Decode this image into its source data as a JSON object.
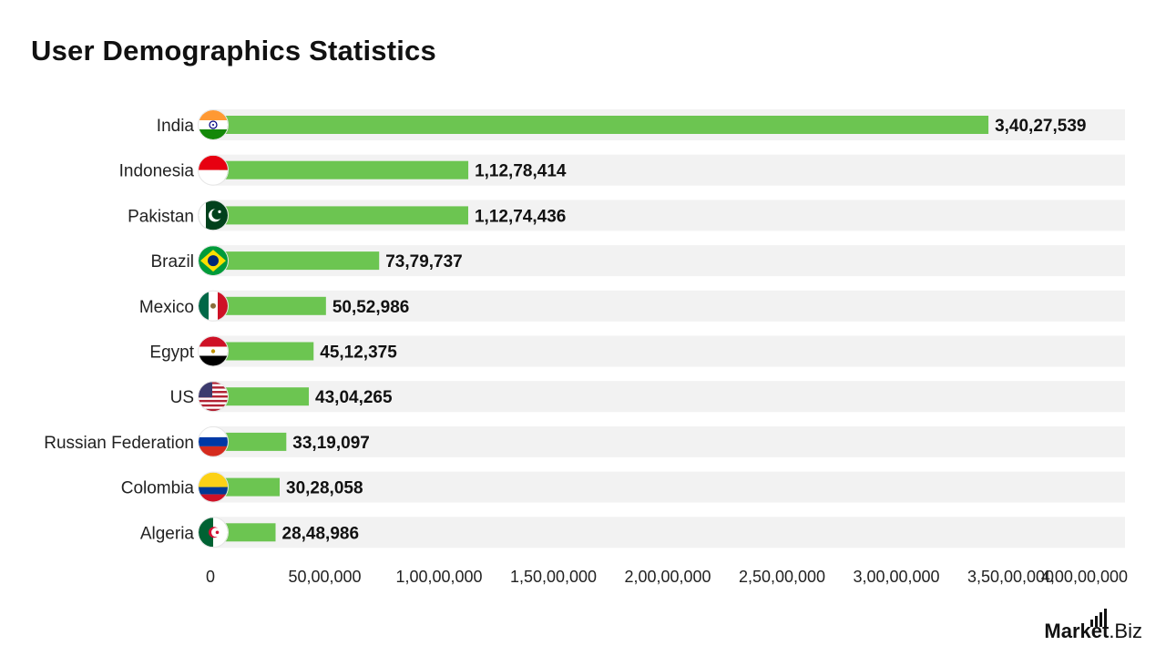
{
  "chart_data": {
    "type": "bar",
    "orientation": "horizontal",
    "title": "User Demographics Statistics",
    "categories": [
      "India",
      "Indonesia",
      "Pakistan",
      "Brazil",
      "Mexico",
      "Egypt",
      "US",
      "Russian Federation",
      "Colombia",
      "Algeria"
    ],
    "values": [
      34027539,
      11278414,
      11274436,
      7379737,
      5052986,
      4512375,
      4304265,
      3319097,
      3028058,
      2848986
    ],
    "value_labels": [
      "3,40,27,539",
      "1,12,78,414",
      "1,12,74,436",
      "73,79,737",
      "50,52,986",
      "45,12,375",
      "43,04,265",
      "33,19,097",
      "30,28,058",
      "28,48,986"
    ],
    "flags": [
      "india-flag-icon",
      "indonesia-flag-icon",
      "pakistan-flag-icon",
      "brazil-flag-icon",
      "mexico-flag-icon",
      "egypt-flag-icon",
      "us-flag-icon",
      "russia-flag-icon",
      "colombia-flag-icon",
      "algeria-flag-icon"
    ],
    "xlim": [
      0,
      40000000
    ],
    "x_ticks": [
      0,
      5000000,
      10000000,
      15000000,
      20000000,
      25000000,
      30000000,
      35000000,
      40000000
    ],
    "x_tick_labels": [
      "0",
      "50,00,000",
      "1,00,00,000",
      "1,50,00,000",
      "2,00,00,000",
      "2,50,00,000",
      "3,00,00,000",
      "3,50,00,000",
      "4,00,00,000"
    ],
    "xlabel": "",
    "ylabel": "",
    "grid": false,
    "legend": "none",
    "bar_color": "#6cc551",
    "track_color": "#f2f2f2"
  },
  "brand": {
    "name_bold": "Market",
    "name_rest": ".Biz"
  }
}
